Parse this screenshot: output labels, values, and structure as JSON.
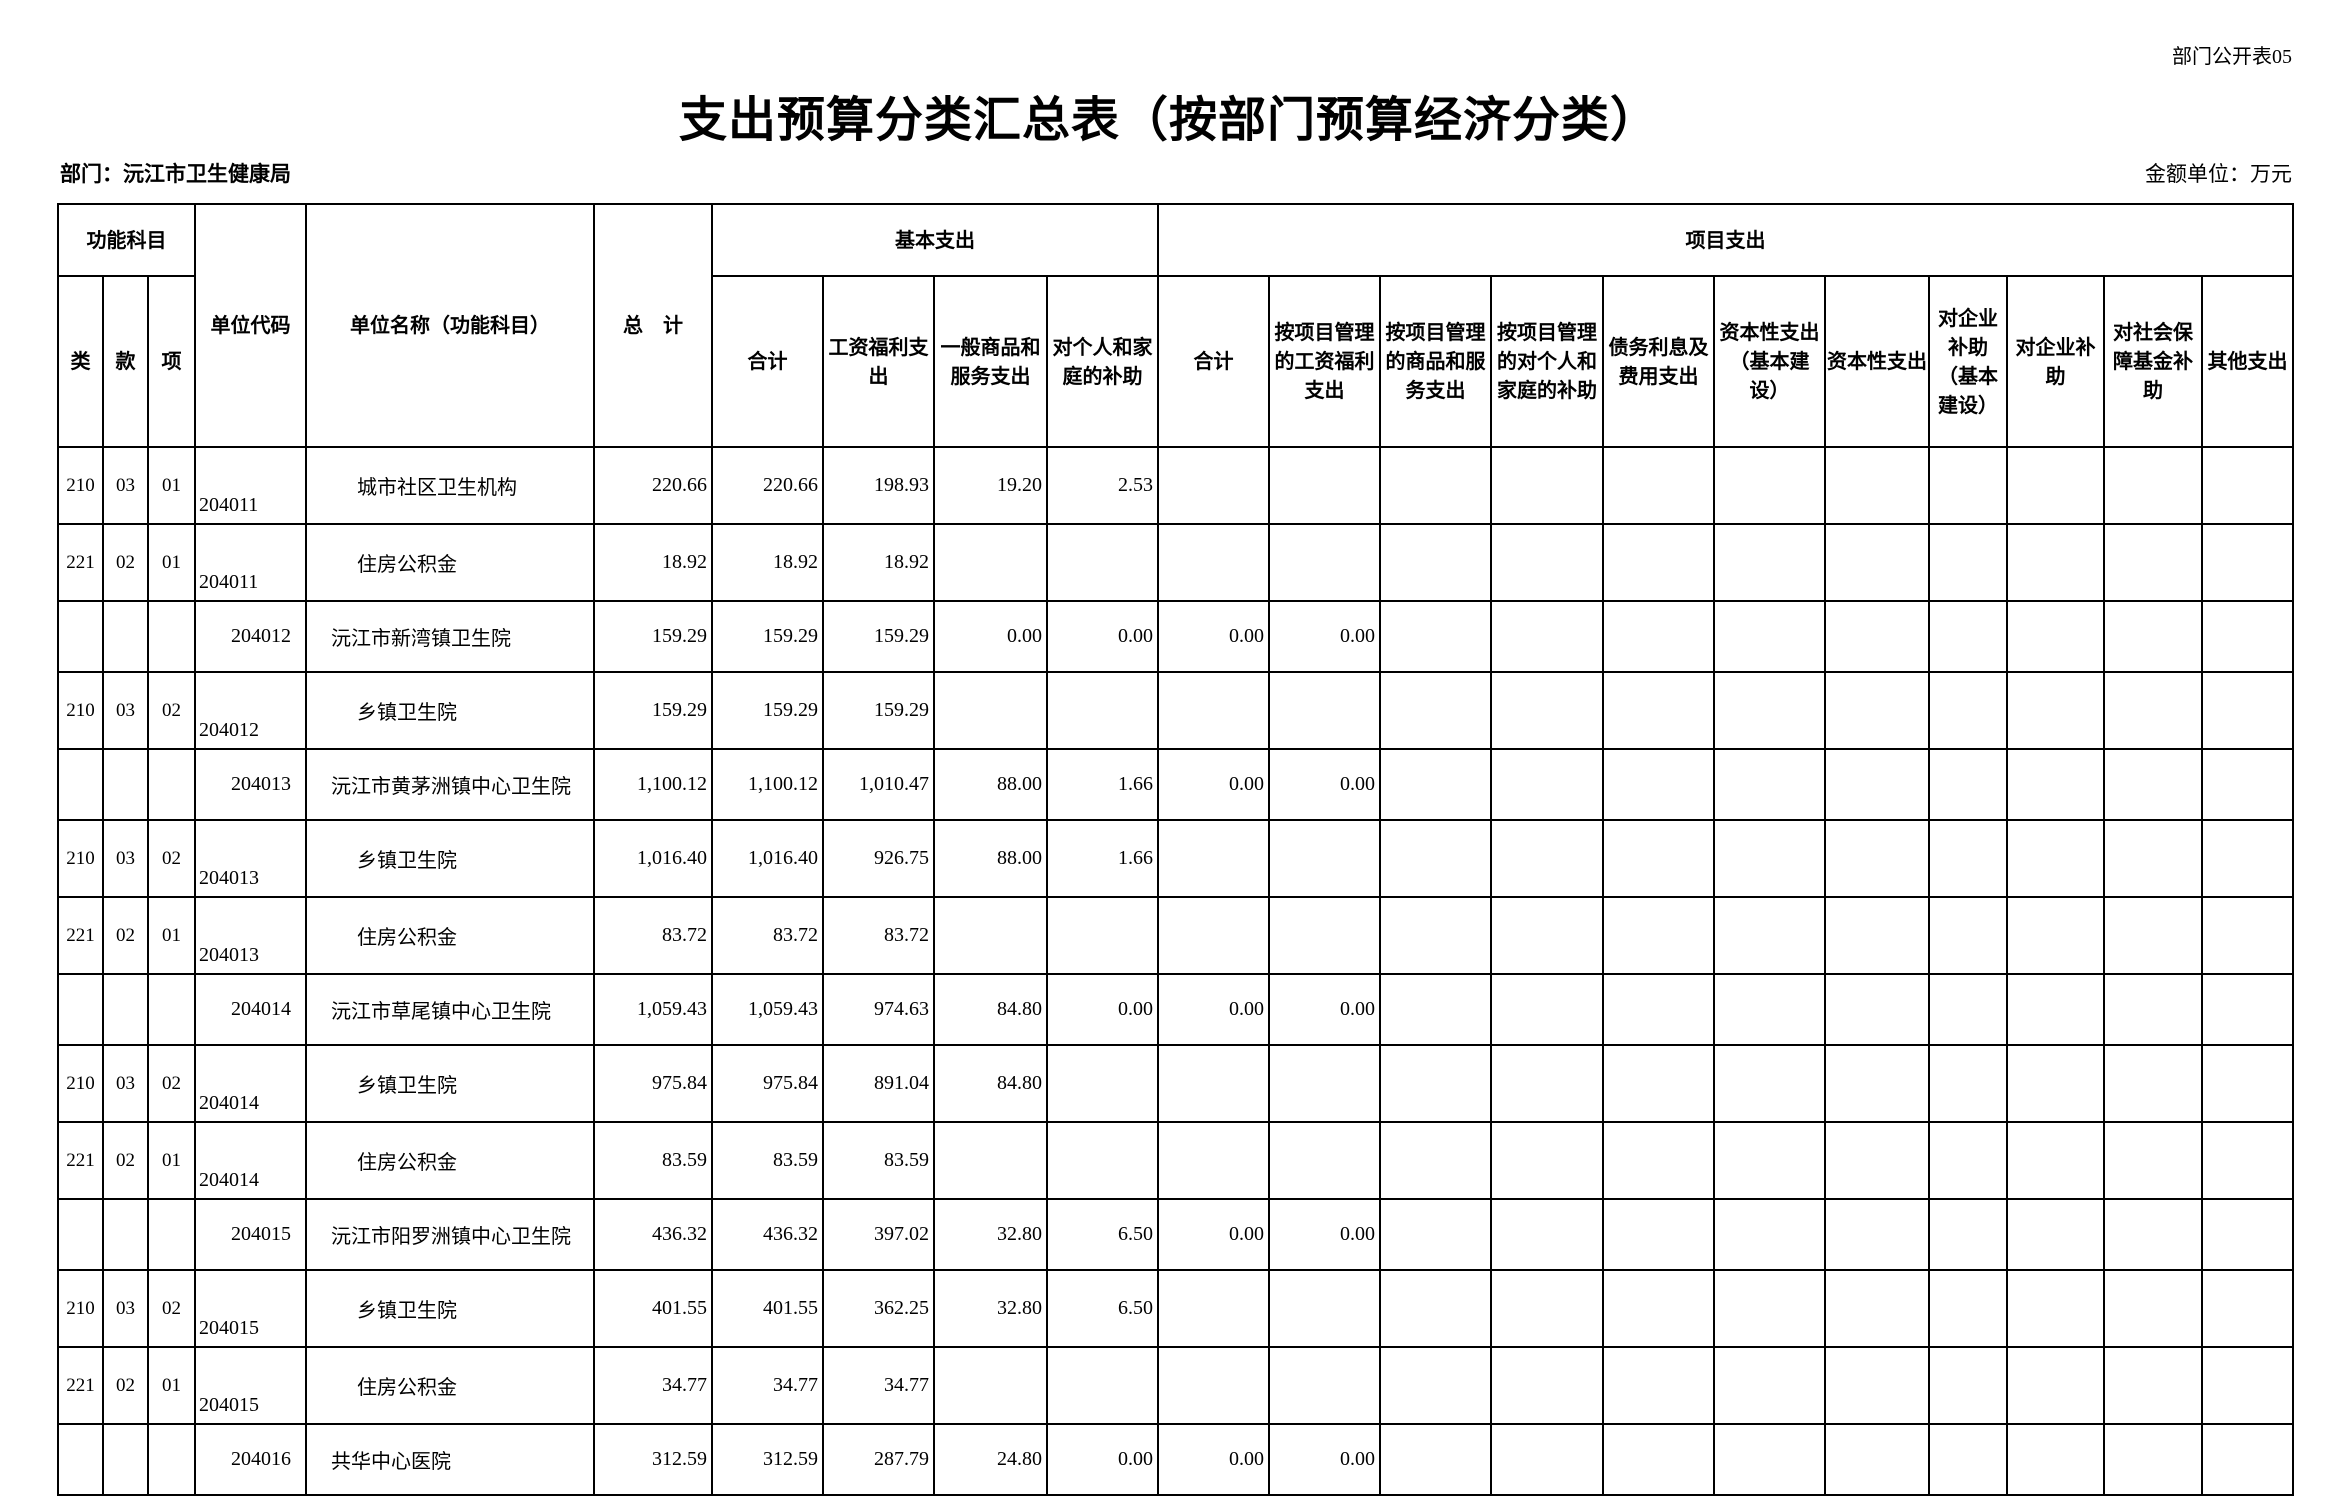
{
  "form_no": "部门公开表05",
  "title": "支出预算分类汇总表（按部门预算经济分类）",
  "department": "部门：沅江市卫生健康局",
  "unit": "金额单位：万元",
  "headers": {
    "func_subject": "功能科目",
    "lei": "类",
    "kuan": "款",
    "xiang": "项",
    "unit_code": "单位代码",
    "unit_name": "单位名称（功能科目）",
    "total": "总　计",
    "basic": "基本支出",
    "project": "项目支出",
    "basic_cols": [
      "合计",
      "工资福利支出",
      "一般商品和服务支出",
      "对个人和家庭的补助"
    ],
    "project_cols": [
      "合计",
      "按项目管理的工资福利支出",
      "按项目管理的商品和服务支出",
      "按项目管理的对个人和家庭的补助",
      "债务利息及费用支出",
      "资本性支出（基本建设）",
      "资本性支出",
      "对企业补助（基本建设）",
      "对企业补助",
      "对社会保障基金补助",
      "其他支出"
    ]
  },
  "rows": [
    {
      "type": "sub",
      "lei": "210",
      "kuan": "03",
      "xiang": "01",
      "code": "204011",
      "name": "城市社区卫生机构",
      "values": [
        "220.66",
        "220.66",
        "198.93",
        "19.20",
        "2.53",
        "",
        "",
        "",
        "",
        "",
        "",
        "",
        "",
        "",
        "",
        ""
      ]
    },
    {
      "type": "sub",
      "lei": "221",
      "kuan": "02",
      "xiang": "01",
      "code": "204011",
      "name": "住房公积金",
      "values": [
        "18.92",
        "18.92",
        "18.92",
        "",
        "",
        "",
        "",
        "",
        "",
        "",
        "",
        "",
        "",
        "",
        "",
        ""
      ]
    },
    {
      "type": "unit",
      "lei": "",
      "kuan": "",
      "xiang": "",
      "code": "204012",
      "name": "沅江市新湾镇卫生院",
      "values": [
        "159.29",
        "159.29",
        "159.29",
        "0.00",
        "0.00",
        "0.00",
        "0.00",
        "",
        "",
        "",
        "",
        "",
        "",
        "",
        "",
        ""
      ]
    },
    {
      "type": "sub",
      "lei": "210",
      "kuan": "03",
      "xiang": "02",
      "code": "204012",
      "name": "乡镇卫生院",
      "values": [
        "159.29",
        "159.29",
        "159.29",
        "",
        "",
        "",
        "",
        "",
        "",
        "",
        "",
        "",
        "",
        "",
        "",
        ""
      ]
    },
    {
      "type": "unit",
      "lei": "",
      "kuan": "",
      "xiang": "",
      "code": "204013",
      "name": "沅江市黄茅洲镇中心卫生院",
      "values": [
        "1,100.12",
        "1,100.12",
        "1,010.47",
        "88.00",
        "1.66",
        "0.00",
        "0.00",
        "",
        "",
        "",
        "",
        "",
        "",
        "",
        "",
        ""
      ]
    },
    {
      "type": "sub",
      "lei": "210",
      "kuan": "03",
      "xiang": "02",
      "code": "204013",
      "name": "乡镇卫生院",
      "values": [
        "1,016.40",
        "1,016.40",
        "926.75",
        "88.00",
        "1.66",
        "",
        "",
        "",
        "",
        "",
        "",
        "",
        "",
        "",
        "",
        ""
      ]
    },
    {
      "type": "sub",
      "lei": "221",
      "kuan": "02",
      "xiang": "01",
      "code": "204013",
      "name": "住房公积金",
      "values": [
        "83.72",
        "83.72",
        "83.72",
        "",
        "",
        "",
        "",
        "",
        "",
        "",
        "",
        "",
        "",
        "",
        "",
        ""
      ]
    },
    {
      "type": "unit",
      "lei": "",
      "kuan": "",
      "xiang": "",
      "code": "204014",
      "name": "沅江市草尾镇中心卫生院",
      "values": [
        "1,059.43",
        "1,059.43",
        "974.63",
        "84.80",
        "0.00",
        "0.00",
        "0.00",
        "",
        "",
        "",
        "",
        "",
        "",
        "",
        "",
        ""
      ]
    },
    {
      "type": "sub",
      "lei": "210",
      "kuan": "03",
      "xiang": "02",
      "code": "204014",
      "name": "乡镇卫生院",
      "values": [
        "975.84",
        "975.84",
        "891.04",
        "84.80",
        "",
        "",
        "",
        "",
        "",
        "",
        "",
        "",
        "",
        "",
        "",
        ""
      ]
    },
    {
      "type": "sub",
      "lei": "221",
      "kuan": "02",
      "xiang": "01",
      "code": "204014",
      "name": "住房公积金",
      "values": [
        "83.59",
        "83.59",
        "83.59",
        "",
        "",
        "",
        "",
        "",
        "",
        "",
        "",
        "",
        "",
        "",
        "",
        ""
      ]
    },
    {
      "type": "unit",
      "lei": "",
      "kuan": "",
      "xiang": "",
      "code": "204015",
      "name": "沅江市阳罗洲镇中心卫生院",
      "values": [
        "436.32",
        "436.32",
        "397.02",
        "32.80",
        "6.50",
        "0.00",
        "0.00",
        "",
        "",
        "",
        "",
        "",
        "",
        "",
        "",
        ""
      ]
    },
    {
      "type": "sub",
      "lei": "210",
      "kuan": "03",
      "xiang": "02",
      "code": "204015",
      "name": "乡镇卫生院",
      "values": [
        "401.55",
        "401.55",
        "362.25",
        "32.80",
        "6.50",
        "",
        "",
        "",
        "",
        "",
        "",
        "",
        "",
        "",
        "",
        ""
      ]
    },
    {
      "type": "sub",
      "lei": "221",
      "kuan": "02",
      "xiang": "01",
      "code": "204015",
      "name": "住房公积金",
      "values": [
        "34.77",
        "34.77",
        "34.77",
        "",
        "",
        "",
        "",
        "",
        "",
        "",
        "",
        "",
        "",
        "",
        "",
        ""
      ]
    },
    {
      "type": "unit",
      "lei": "",
      "kuan": "",
      "xiang": "",
      "code": "204016",
      "name": "共华中心医院",
      "values": [
        "312.59",
        "312.59",
        "287.79",
        "24.80",
        "0.00",
        "0.00",
        "0.00",
        "",
        "",
        "",
        "",
        "",
        "",
        "",
        "",
        ""
      ]
    }
  ]
}
